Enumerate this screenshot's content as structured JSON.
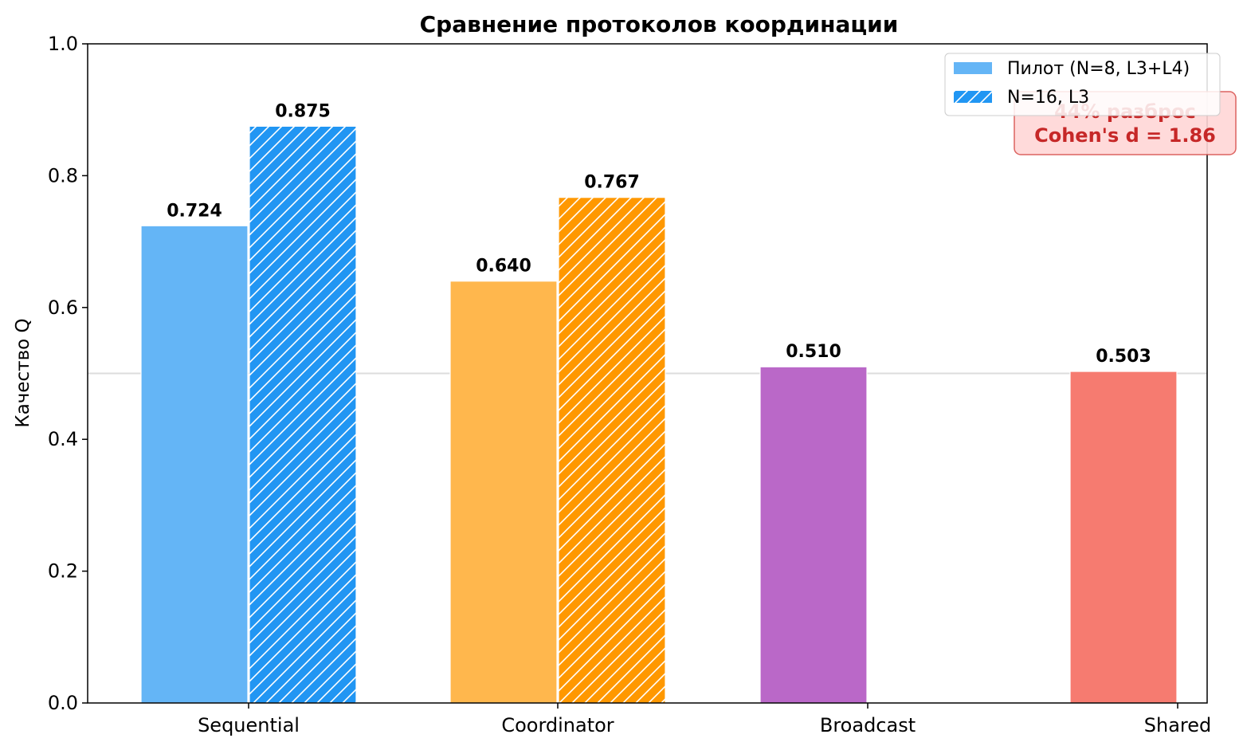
{
  "chart_data": {
    "type": "bar",
    "title": "Сравнение протоколов координации",
    "xlabel": "",
    "ylabel": "Качество Q",
    "ylim": [
      0,
      1.0
    ],
    "yticks": [
      "0.0",
      "0.2",
      "0.4",
      "0.6",
      "0.8",
      "1.0"
    ],
    "categories": [
      "Sequential",
      "Coordinator",
      "Broadcast",
      "Shared"
    ],
    "series": [
      {
        "name": "Пилот (N=8, L3+L4)",
        "values": [
          0.724,
          0.64,
          0.51,
          0.503
        ],
        "labels": [
          "0.724",
          "0.640",
          "0.510",
          "0.503"
        ],
        "hatch": false
      },
      {
        "name": "N=16, L3",
        "values": [
          0.875,
          0.767,
          null,
          null
        ],
        "labels": [
          "0.875",
          "0.767",
          "",
          ""
        ],
        "hatch": true
      }
    ],
    "colors": {
      "pilot": [
        "#64B5F6",
        "#FFB74D",
        "#BA68C8",
        "#F67B70"
      ],
      "n16": [
        "#2196F3",
        "#FF9800",
        null,
        null
      ]
    },
    "reference_line": 0.5,
    "grid": false,
    "legend_position": "top-right",
    "annotation": {
      "lines": [
        "44% разброс",
        "Cohen's d = 1.86"
      ],
      "color": "#C62828",
      "background": "#FFD6D6"
    }
  }
}
